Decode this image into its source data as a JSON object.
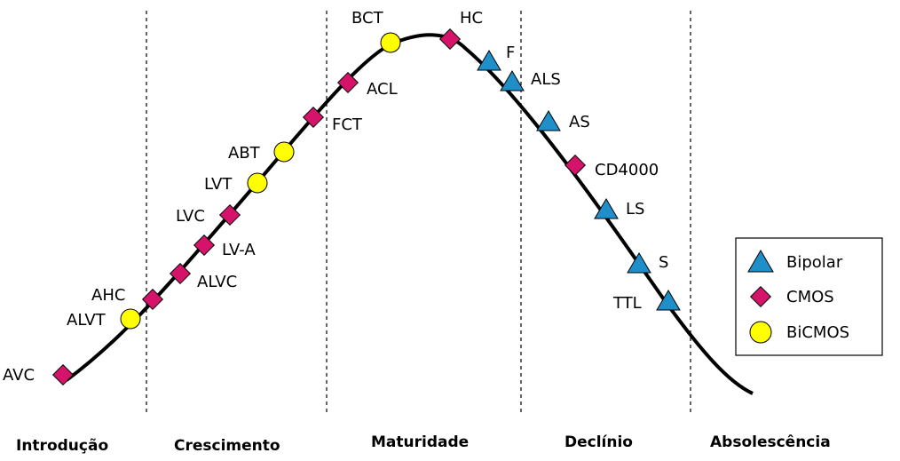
{
  "stages": [
    "Introdução",
    "Crescimento",
    "Maturidade",
    "Declínio",
    "Absolescência"
  ],
  "legend": {
    "bipolar": "Bipolar",
    "cmos": "CMOS",
    "bicmos": "BiCMOS"
  },
  "colors": {
    "bipolar": "#1e8fc8",
    "cmos": "#d6136b",
    "bicmos": "#ffff00",
    "curve": "#000000"
  },
  "families": {
    "avc": "AVC",
    "alvt": "ALVT",
    "ahc": "AHC",
    "alvc": "ALVC",
    "lva": "LV-A",
    "lvc": "LVC",
    "lvt": "LVT",
    "abt": "ABT",
    "fct": "FCT",
    "acl": "ACL",
    "bct": "BCT",
    "hc": "HC",
    "f": "F",
    "als": "ALS",
    "as": "AS",
    "cd4000": "CD4000",
    "ls": "LS",
    "s": "S",
    "ttl": "TTL"
  }
}
